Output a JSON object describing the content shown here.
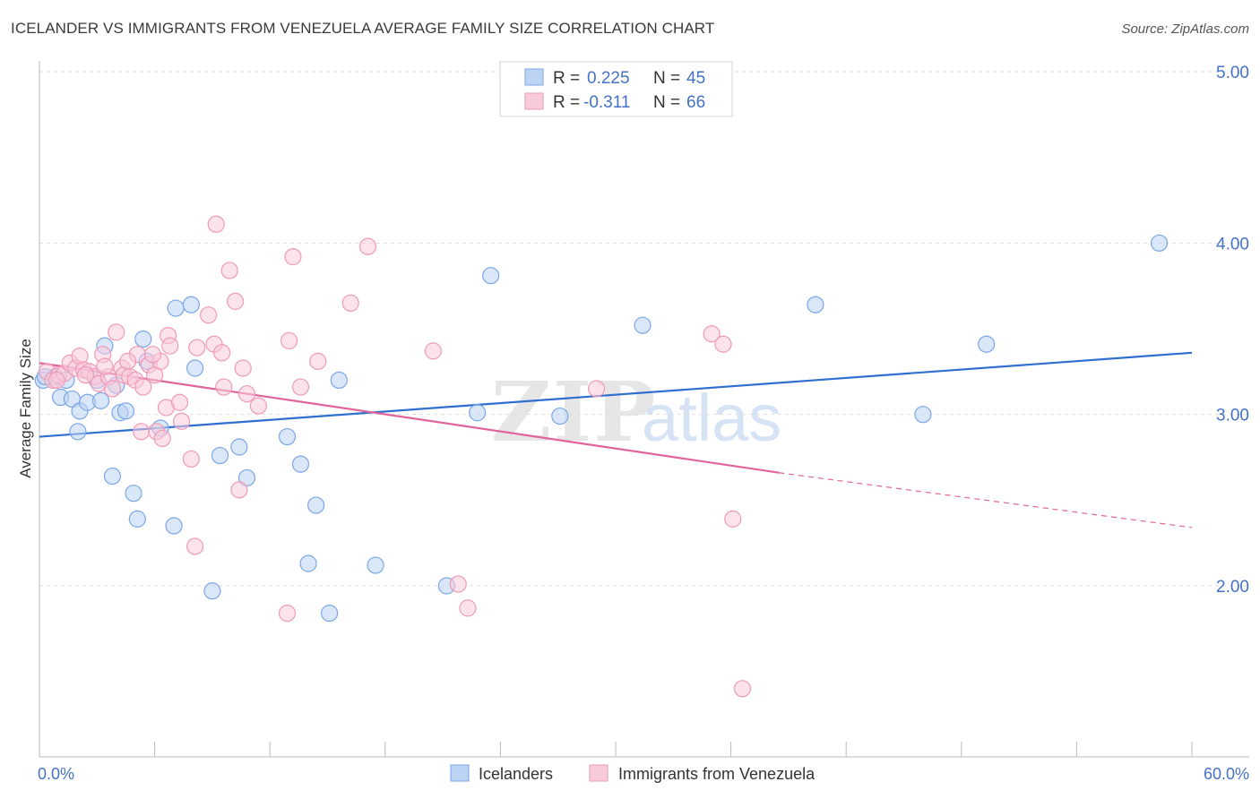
{
  "header": {
    "title": "ICELANDER VS IMMIGRANTS FROM VENEZUELA AVERAGE FAMILY SIZE CORRELATION CHART",
    "source": "Source: ZipAtlas.com"
  },
  "watermark": {
    "zip": "ZIP",
    "atlas": "atlas"
  },
  "chart_data": {
    "type": "scatter",
    "title": "ICELANDER VS IMMIGRANTS FROM VENEZUELA AVERAGE FAMILY SIZE CORRELATION CHART",
    "xlabel": "",
    "ylabel": "Average Family Size",
    "xlim": [
      0,
      60
    ],
    "ylim": [
      1.0,
      5.2
    ],
    "x_tick_labels": {
      "left": "0.0%",
      "right": "60.0%"
    },
    "y_ticks": [
      {
        "value": 2.0,
        "label": "2.00"
      },
      {
        "value": 3.0,
        "label": "3.00"
      },
      {
        "value": 4.0,
        "label": "4.00"
      },
      {
        "value": 5.0,
        "label": "5.00"
      }
    ],
    "grid": true,
    "legend": {
      "position": "top-center",
      "entries": [
        {
          "r_label": "R =",
          "r_value": "0.225",
          "n_label": "N =",
          "n_value": "45"
        },
        {
          "r_label": "R =",
          "r_value": "-0.311",
          "n_label": "N =",
          "n_value": "66"
        }
      ]
    },
    "series": [
      {
        "name": "Icelanders",
        "color": "#7aa7e8",
        "fill": "#bcd3f4",
        "line_color": "#2f6fd0",
        "trend": {
          "x0": 0,
          "y0": 2.87,
          "x1": 60,
          "y1": 3.36
        },
        "points": [
          [
            0.2,
            3.2
          ],
          [
            0.8,
            3.22
          ],
          [
            1.1,
            3.1
          ],
          [
            1.4,
            3.2
          ],
          [
            1.7,
            3.09
          ],
          [
            2.0,
            2.9
          ],
          [
            2.1,
            3.02
          ],
          [
            2.5,
            3.07
          ],
          [
            3.0,
            3.2
          ],
          [
            3.2,
            3.08
          ],
          [
            3.4,
            3.4
          ],
          [
            3.8,
            2.64
          ],
          [
            4.0,
            3.17
          ],
          [
            4.2,
            3.01
          ],
          [
            4.5,
            3.02
          ],
          [
            4.9,
            2.54
          ],
          [
            5.1,
            2.39
          ],
          [
            5.4,
            3.44
          ],
          [
            5.6,
            3.31
          ],
          [
            6.3,
            2.92
          ],
          [
            7.0,
            2.35
          ],
          [
            7.1,
            3.62
          ],
          [
            7.9,
            3.64
          ],
          [
            8.1,
            3.27
          ],
          [
            9.0,
            1.97
          ],
          [
            9.4,
            2.76
          ],
          [
            10.4,
            2.81
          ],
          [
            10.8,
            2.63
          ],
          [
            12.9,
            2.87
          ],
          [
            13.6,
            2.71
          ],
          [
            14.0,
            2.13
          ],
          [
            14.4,
            2.47
          ],
          [
            15.1,
            1.84
          ],
          [
            15.6,
            3.2
          ],
          [
            17.5,
            2.12
          ],
          [
            21.2,
            2.0
          ],
          [
            22.8,
            3.01
          ],
          [
            23.5,
            3.81
          ],
          [
            27.1,
            2.99
          ],
          [
            31.4,
            3.52
          ],
          [
            40.4,
            3.64
          ],
          [
            46.0,
            3.0
          ],
          [
            49.3,
            3.41
          ],
          [
            58.3,
            4.0
          ],
          [
            0.3,
            3.22
          ]
        ]
      },
      {
        "name": "Immigrants from Venezuela",
        "color": "#ef9ab6",
        "fill": "#f8cbdb",
        "line_color": "#e0649a",
        "trend": {
          "x0": 0,
          "y0": 3.3,
          "x1": 38.5,
          "y1": 2.66,
          "dash_x1": 60,
          "dash_y1": 2.34
        },
        "points": [
          [
            0.4,
            3.25
          ],
          [
            0.7,
            3.2
          ],
          [
            1.0,
            3.23
          ],
          [
            1.3,
            3.24
          ],
          [
            1.6,
            3.3
          ],
          [
            1.9,
            3.27
          ],
          [
            2.1,
            3.34
          ],
          [
            2.3,
            3.26
          ],
          [
            2.6,
            3.25
          ],
          [
            2.9,
            3.22
          ],
          [
            3.1,
            3.18
          ],
          [
            3.3,
            3.35
          ],
          [
            3.6,
            3.22
          ],
          [
            3.8,
            3.15
          ],
          [
            4.0,
            3.48
          ],
          [
            4.3,
            3.27
          ],
          [
            4.4,
            3.23
          ],
          [
            4.7,
            3.22
          ],
          [
            5.0,
            3.2
          ],
          [
            5.1,
            3.35
          ],
          [
            5.3,
            2.9
          ],
          [
            5.4,
            3.16
          ],
          [
            5.7,
            3.29
          ],
          [
            6.0,
            3.23
          ],
          [
            6.1,
            2.9
          ],
          [
            6.3,
            3.31
          ],
          [
            6.4,
            2.86
          ],
          [
            6.6,
            3.04
          ],
          [
            6.7,
            3.46
          ],
          [
            7.3,
            3.07
          ],
          [
            7.4,
            2.96
          ],
          [
            7.9,
            2.74
          ],
          [
            8.1,
            2.23
          ],
          [
            8.2,
            3.39
          ],
          [
            8.8,
            3.58
          ],
          [
            9.1,
            3.41
          ],
          [
            9.2,
            4.11
          ],
          [
            9.5,
            3.36
          ],
          [
            9.6,
            3.16
          ],
          [
            9.9,
            3.84
          ],
          [
            10.2,
            3.66
          ],
          [
            10.4,
            2.56
          ],
          [
            10.6,
            3.27
          ],
          [
            10.8,
            3.12
          ],
          [
            11.4,
            3.05
          ],
          [
            12.9,
            1.84
          ],
          [
            13.0,
            3.43
          ],
          [
            13.2,
            3.92
          ],
          [
            13.6,
            3.16
          ],
          [
            14.5,
            3.31
          ],
          [
            16.2,
            3.65
          ],
          [
            17.1,
            3.98
          ],
          [
            20.5,
            3.37
          ],
          [
            21.8,
            2.01
          ],
          [
            22.3,
            1.87
          ],
          [
            29.0,
            3.15
          ],
          [
            35.0,
            3.47
          ],
          [
            35.6,
            3.41
          ],
          [
            36.1,
            2.39
          ],
          [
            36.6,
            1.4
          ],
          [
            3.4,
            3.28
          ],
          [
            4.6,
            3.31
          ],
          [
            5.9,
            3.35
          ],
          [
            2.4,
            3.23
          ],
          [
            6.8,
            3.4
          ],
          [
            0.9,
            3.2
          ]
        ]
      }
    ]
  }
}
